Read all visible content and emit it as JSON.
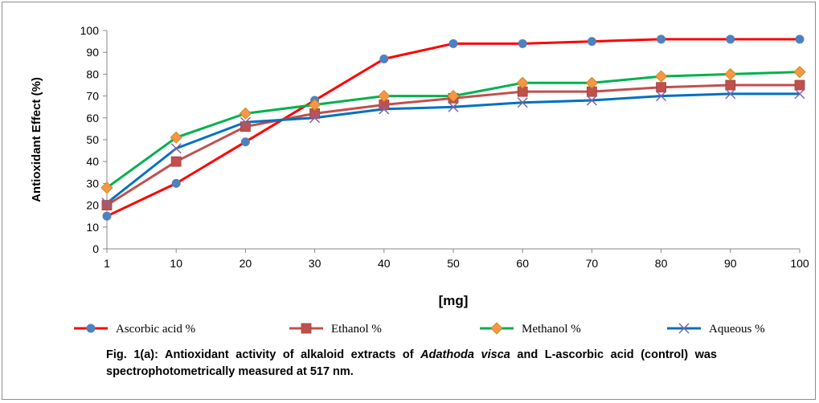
{
  "chart_data": {
    "type": "line",
    "title": "",
    "xlabel": "[mg]",
    "ylabel": "Antioxidant Effect (%)",
    "ylim": [
      0,
      100
    ],
    "yticks": [
      0,
      10,
      20,
      30,
      40,
      50,
      60,
      70,
      80,
      90,
      100
    ],
    "categories": [
      "1",
      "10",
      "20",
      "30",
      "40",
      "50",
      "60",
      "70",
      "80",
      "90",
      "100"
    ],
    "legend_position": "bottom",
    "series": [
      {
        "name": "Ascorbic  acid %",
        "color": "#ff0000",
        "marker": "circle",
        "marker_color": "#4f81bd",
        "values": [
          15,
          30,
          49,
          68,
          87,
          94,
          94,
          95,
          96,
          96,
          96
        ]
      },
      {
        "name": "Ethanol %",
        "color": "#c0504d",
        "marker": "square",
        "marker_color": "#c0504d",
        "values": [
          20,
          40,
          56,
          62,
          66,
          69,
          72,
          72,
          74,
          75,
          75
        ]
      },
      {
        "name": "Methanol %",
        "color": "#00b050",
        "marker": "diamond",
        "marker_color": "#f79646",
        "values": [
          28,
          51,
          62,
          66,
          70,
          70,
          76,
          76,
          79,
          80,
          81
        ]
      },
      {
        "name": "Aqueous %",
        "color": "#0070c0",
        "marker": "x",
        "marker_color": "#8064a2",
        "values": [
          21,
          46,
          58,
          60,
          64,
          65,
          67,
          68,
          70,
          71,
          71
        ]
      }
    ]
  },
  "caption": {
    "prefix": "Fig. 1(a): Antioxidant activity of alkaloid  extracts of ",
    "species": "Adathoda visca",
    "suffix": " and L-ascorbic acid (control) was spectrophotometrically measured at 517 nm."
  }
}
